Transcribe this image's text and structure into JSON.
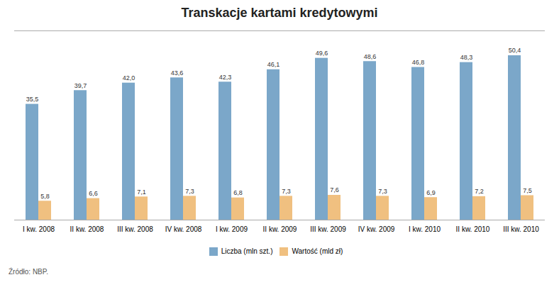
{
  "chart_data": {
    "type": "bar",
    "title": "Transkacje kartami kredytowymi",
    "categories": [
      "I kw. 2008",
      "II kw. 2008",
      "III kw. 2008",
      "IV kw. 2008",
      "I kw. 2009",
      "II kw. 2009",
      "III kw. 2009",
      "IV kw. 2009",
      "I kw. 2010",
      "II kw. 2010",
      "III kw. 2010"
    ],
    "series": [
      {
        "name": "Liczba (mln szt.)",
        "color": "#7ba7c9",
        "values": [
          35.5,
          39.7,
          42.0,
          43.6,
          42.3,
          46.1,
          49.6,
          48.6,
          46.8,
          48.3,
          50.4
        ],
        "value_labels": [
          "35,5",
          "39,7",
          "42,0",
          "43,6",
          "42,3",
          "46,1",
          "49,6",
          "48,6",
          "46,8",
          "48,3",
          "50,4"
        ]
      },
      {
        "name": "Wartość (mld zł)",
        "color": "#f0c080",
        "values": [
          5.8,
          6.6,
          7.1,
          7.3,
          6.8,
          7.3,
          7.6,
          7.3,
          6.9,
          7.2,
          7.5
        ],
        "value_labels": [
          "5,8",
          "6,6",
          "7,1",
          "7,3",
          "6,8",
          "7,3",
          "7,6",
          "7,3",
          "6,9",
          "7,2",
          "7,5"
        ]
      }
    ],
    "ylim": [
      0,
      58
    ],
    "grid": false,
    "legend": "bottom",
    "data_labels": true,
    "tick_labels": "x",
    "caption": "Źródło: NBP."
  }
}
